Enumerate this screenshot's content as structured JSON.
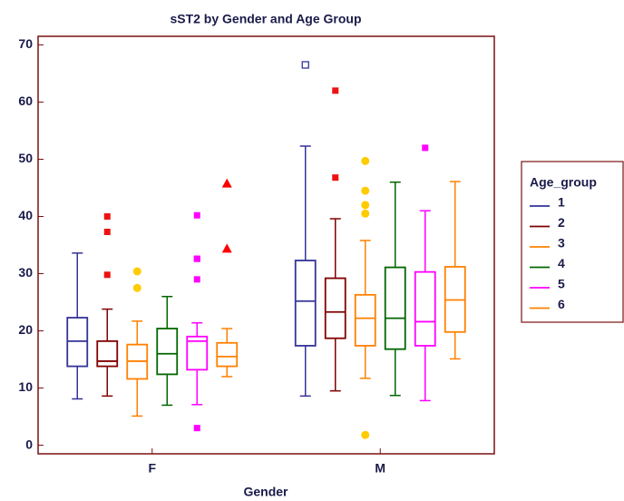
{
  "chart_data": {
    "type": "box",
    "title": "sST2 by Gender and Age Group",
    "x_label": "Gender",
    "legend_title": "Age_group",
    "categories": [
      "F",
      "M"
    ],
    "ylim": [
      -1.5,
      71.5
    ],
    "yticks": [
      0,
      10,
      20,
      30,
      40,
      50,
      60,
      70
    ],
    "series": [
      {
        "name": "1",
        "color": "#333399",
        "outlier_color": "#333399",
        "outlier_marker": "square-open",
        "boxes": [
          {
            "low": 8.1,
            "q1": 13.8,
            "median": 18.2,
            "q3": 22.3,
            "high": 33.6,
            "outliers": []
          },
          {
            "low": 8.6,
            "q1": 17.4,
            "median": 25.2,
            "q3": 32.3,
            "high": 52.3,
            "outliers": [
              66.5
            ]
          }
        ]
      },
      {
        "name": "2",
        "color": "#800000",
        "outlier_color": "#ee1111",
        "outlier_marker": "square",
        "boxes": [
          {
            "low": 8.6,
            "q1": 13.8,
            "median": 14.7,
            "q3": 18.2,
            "high": 23.8,
            "outliers": [
              40.0,
              37.3,
              29.8
            ]
          },
          {
            "low": 9.5,
            "q1": 18.7,
            "median": 23.3,
            "q3": 29.2,
            "high": 39.6,
            "outliers": [
              62.0,
              46.8
            ]
          }
        ]
      },
      {
        "name": "3",
        "color": "#ff8000",
        "outlier_color": "#ffcc00",
        "outlier_marker": "circle",
        "boxes": [
          {
            "low": 5.1,
            "q1": 11.6,
            "median": 14.7,
            "q3": 17.6,
            "high": 21.7,
            "outliers": [
              30.4,
              27.5
            ]
          },
          {
            "low": 11.7,
            "q1": 17.4,
            "median": 22.2,
            "q3": 26.3,
            "high": 35.8,
            "outliers": [
              49.7,
              44.5,
              42.0,
              40.5,
              1.8
            ]
          }
        ]
      },
      {
        "name": "4",
        "color": "#006600",
        "outlier_color": "#006600",
        "outlier_marker": "square",
        "boxes": [
          {
            "low": 7.0,
            "q1": 12.4,
            "median": 16.0,
            "q3": 20.4,
            "high": 26.0,
            "outliers": []
          },
          {
            "low": 8.7,
            "q1": 16.8,
            "median": 22.2,
            "q3": 31.1,
            "high": 46.0,
            "outliers": []
          }
        ]
      },
      {
        "name": "5",
        "color": "#ff00ff",
        "outlier_color": "#ff00ff",
        "outlier_marker": "square",
        "boxes": [
          {
            "low": 7.1,
            "q1": 13.2,
            "median": 18.2,
            "q3": 19.0,
            "high": 21.4,
            "outliers": [
              40.2,
              32.6,
              32.6,
              29.0,
              3.0
            ]
          },
          {
            "low": 7.8,
            "q1": 17.4,
            "median": 21.6,
            "q3": 30.3,
            "high": 41.0,
            "outliers": [
              52.0
            ]
          }
        ]
      },
      {
        "name": "6",
        "color": "#ff8000",
        "outlier_color": "#ff0000",
        "outlier_marker": "triangle",
        "boxes": [
          {
            "low": 12.0,
            "q1": 13.8,
            "median": 15.5,
            "q3": 17.9,
            "high": 20.4,
            "outliers": [
              45.7,
              34.3
            ]
          },
          {
            "low": 15.1,
            "q1": 19.8,
            "median": 25.4,
            "q3": 31.2,
            "high": 46.1,
            "outliers": []
          }
        ]
      }
    ]
  }
}
